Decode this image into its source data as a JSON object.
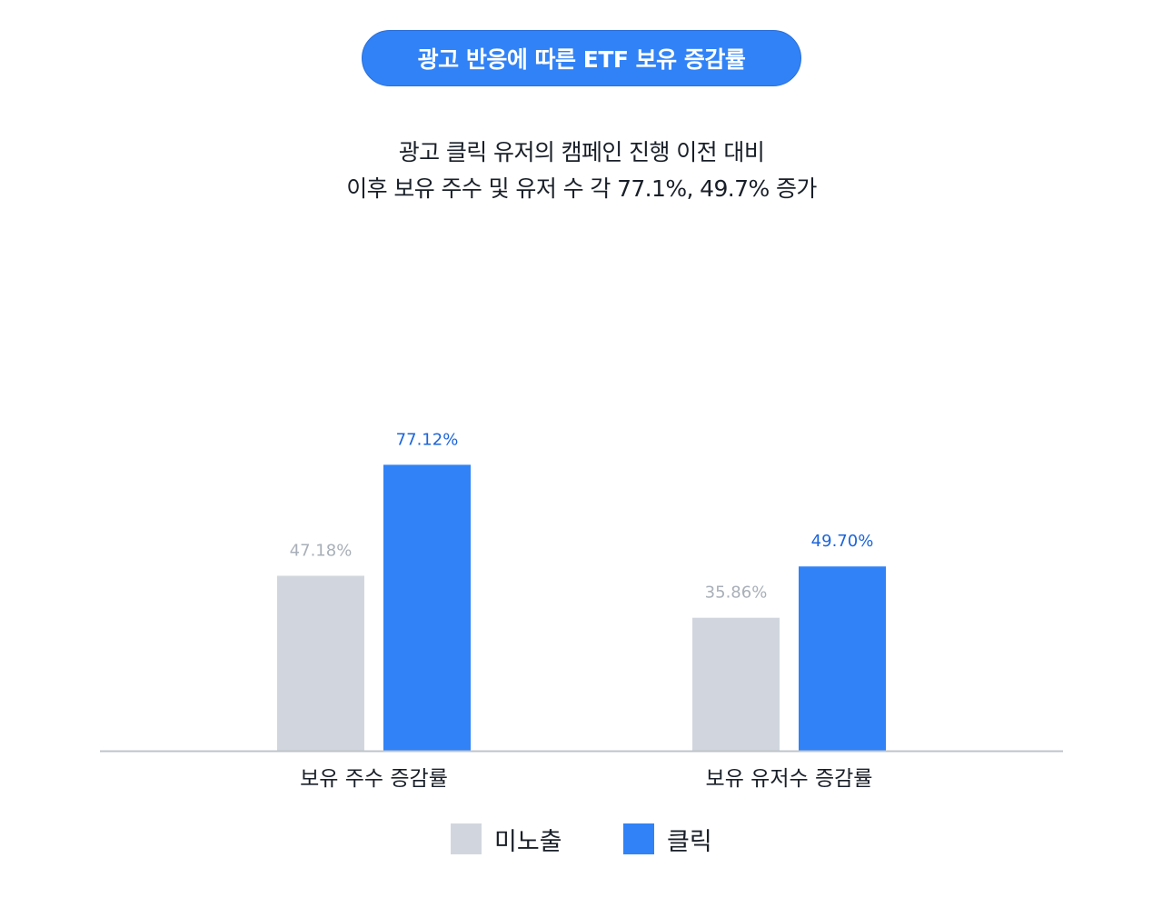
{
  "header": {
    "title": "광고 반응에 따른 ETF 보유 증감률",
    "subtitle_line1": "광고 클릭 유저의 캠페인 진행 이전 대비",
    "subtitle_line2": "이후 보유 주수 및 유저 수 각 77.1%, 49.7% 증가"
  },
  "colors": {
    "accent": "#3182f6",
    "unexposed": "#d1d6de",
    "unexposed_label": "#a8afb8",
    "axis": "#bfc4cb",
    "text": "#191f28"
  },
  "chart_data": {
    "type": "bar",
    "categories": [
      "보유 주수 증감률",
      "보유 유저수 증감률"
    ],
    "series": [
      {
        "name": "미노출",
        "values": [
          47.18,
          35.86
        ],
        "labels": [
          "47.18%",
          "35.86%"
        ],
        "color": "#d1d6de",
        "label_color": "#a8afb8"
      },
      {
        "name": "클릭",
        "values": [
          77.12,
          49.7
        ],
        "labels": [
          "77.12%",
          "49.70%"
        ],
        "color": "#3182f6",
        "label_color": "#1b64da"
      }
    ],
    "ylim": [
      0,
      100
    ],
    "grid": false,
    "legend": "bottom-center"
  }
}
